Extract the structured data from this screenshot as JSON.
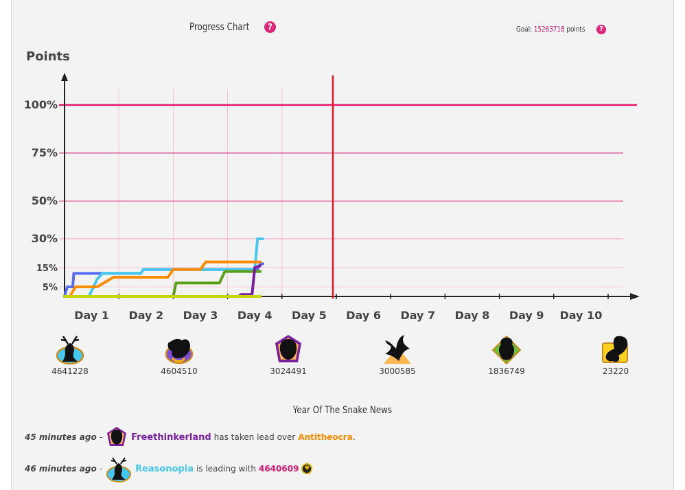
{
  "header": {
    "title": "Progress Chart",
    "goal_label": "Goal:",
    "goal_value": "15263718",
    "goal_unit": "points"
  },
  "chart_data": {
    "type": "line",
    "ylabel": "Points",
    "y_ticks": [
      "100%",
      "75%",
      "50%",
      "30%",
      "15%",
      "5%"
    ],
    "y_tick_values": [
      100,
      75,
      50,
      30,
      15,
      5
    ],
    "categories": [
      "Day 1",
      "Day 2",
      "Day 3",
      "Day 4",
      "Day 5",
      "Day 6",
      "Day 7",
      "Day 8",
      "Day 9",
      "Day 10"
    ],
    "current_day_marker": 5,
    "goal_line": 100,
    "series": [
      {
        "color": "#5a6cf0",
        "points": [
          [
            0,
            0
          ],
          [
            0.05,
            5
          ],
          [
            0.15,
            5
          ],
          [
            0.17,
            12
          ],
          [
            1.4,
            12
          ],
          [
            1.45,
            14
          ],
          [
            3.55,
            14
          ],
          [
            3.6,
            17
          ],
          [
            3.65,
            17
          ]
        ]
      },
      {
        "color": "#45c8ef",
        "points": [
          [
            0,
            0
          ],
          [
            0.45,
            0
          ],
          [
            0.6,
            9
          ],
          [
            0.7,
            12
          ],
          [
            1.4,
            12
          ],
          [
            1.45,
            14
          ],
          [
            3.5,
            14
          ],
          [
            3.55,
            30
          ],
          [
            3.65,
            30
          ]
        ]
      },
      {
        "color": "#ff8c00",
        "points": [
          [
            0,
            0
          ],
          [
            0.1,
            0
          ],
          [
            0.2,
            5
          ],
          [
            0.6,
            5
          ],
          [
            0.9,
            10
          ],
          [
            1.9,
            10
          ],
          [
            2.0,
            14
          ],
          [
            2.5,
            14
          ],
          [
            2.6,
            18
          ],
          [
            3.55,
            18
          ],
          [
            3.6,
            18
          ]
        ]
      },
      {
        "color": "#5a9e1a",
        "points": [
          [
            0,
            0
          ],
          [
            2.0,
            0
          ],
          [
            2.05,
            7
          ],
          [
            2.85,
            7
          ],
          [
            2.95,
            13
          ],
          [
            3.6,
            13
          ]
        ]
      },
      {
        "color": "#7b1fa2",
        "points": [
          [
            0,
            0
          ],
          [
            3.2,
            0
          ],
          [
            3.25,
            1
          ],
          [
            3.45,
            1
          ],
          [
            3.5,
            15
          ],
          [
            3.6,
            16
          ]
        ]
      },
      {
        "color": "#c8d40a",
        "points": [
          [
            0,
            0
          ],
          [
            3.6,
            0
          ]
        ]
      }
    ]
  },
  "teams": [
    {
      "icon": "deer-icon",
      "score": "4641228"
    },
    {
      "icon": "dragon-icon",
      "score": "4604510"
    },
    {
      "icon": "owl-icon",
      "score": "3024491"
    },
    {
      "icon": "phoenix-icon",
      "score": "3000585"
    },
    {
      "icon": "monkey-icon",
      "score": "1836749"
    },
    {
      "icon": "butterfly-icon",
      "score": "23220"
    }
  ],
  "news": {
    "title": "Year Of The Snake News",
    "items": [
      {
        "time": "45 minutes ago",
        "sep": "-",
        "team": "Freethinkerland",
        "team_color": "#7b1fa2",
        "text": "has taken lead over",
        "target": "Antitheocra",
        "target_color": "#ff8c00",
        "end": "."
      },
      {
        "time": "46 minutes ago",
        "sep": "-",
        "team": "Reasonopia",
        "team_color": "#45c8ef",
        "text": "is leading with",
        "target": "4640609",
        "target_color": "#d81b73",
        "end": ""
      }
    ]
  },
  "colors": {
    "accent": "#e0287a",
    "goal_line": "#e8166a",
    "day_marker": "#e8161e"
  }
}
